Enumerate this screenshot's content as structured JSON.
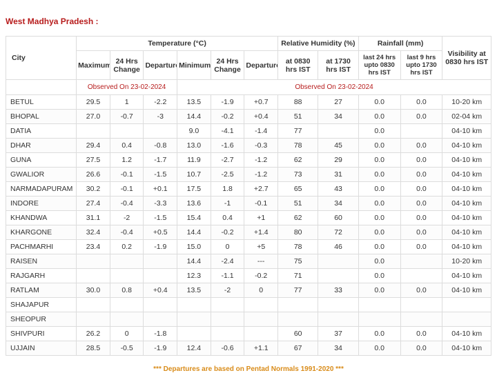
{
  "region_title": "West Madhya Pradesh :",
  "headers": {
    "city": "City",
    "temperature": "Temperature (°C)",
    "relative_humidity": "Relative Humidity (%)",
    "rainfall": "Rainfall (mm)",
    "visibility": "Visibility at 0830 hrs IST",
    "maximum": "Maximum",
    "change_24": "24 Hrs Change",
    "departure": "Departure",
    "minimum": "Minimum",
    "rh_0830": "at 0830 hrs IST",
    "rh_1730": "at 1730 hrs IST",
    "rain_24": "last 24 hrs upto 0830 hrs IST",
    "rain_9": "last 9 hrs upto 1730 hrs IST",
    "observed_left": "Observed On 23-02-2024",
    "observed_right": "Observed On 23-02-2024"
  },
  "rows": [
    {
      "city": "BETUL",
      "max": "29.5",
      "max_chg": "1",
      "max_dep": "-2.2",
      "min": "13.5",
      "min_chg": "-1.9",
      "min_dep": "+0.7",
      "rh0830": "88",
      "rh1730": "27",
      "rain24": "0.0",
      "rain9": "0.0",
      "vis": "10-20 km"
    },
    {
      "city": "BHOPAL",
      "max": "27.0",
      "max_chg": "-0.7",
      "max_dep": "-3",
      "min": "14.4",
      "min_chg": "-0.2",
      "min_dep": "+0.4",
      "rh0830": "51",
      "rh1730": "34",
      "rain24": "0.0",
      "rain9": "0.0",
      "vis": "02-04 km"
    },
    {
      "city": "DATIA",
      "max": "",
      "max_chg": "",
      "max_dep": "",
      "min": "9.0",
      "min_chg": "-4.1",
      "min_dep": "-1.4",
      "rh0830": "77",
      "rh1730": "",
      "rain24": "0.0",
      "rain9": "",
      "vis": "04-10 km"
    },
    {
      "city": "DHAR",
      "max": "29.4",
      "max_chg": "0.4",
      "max_dep": "-0.8",
      "min": "13.0",
      "min_chg": "-1.6",
      "min_dep": "-0.3",
      "rh0830": "78",
      "rh1730": "45",
      "rain24": "0.0",
      "rain9": "0.0",
      "vis": "04-10 km"
    },
    {
      "city": "GUNA",
      "max": "27.5",
      "max_chg": "1.2",
      "max_dep": "-1.7",
      "min": "11.9",
      "min_chg": "-2.7",
      "min_dep": "-1.2",
      "rh0830": "62",
      "rh1730": "29",
      "rain24": "0.0",
      "rain9": "0.0",
      "vis": "04-10 km"
    },
    {
      "city": "GWALIOR",
      "max": "26.6",
      "max_chg": "-0.1",
      "max_dep": "-1.5",
      "min": "10.7",
      "min_chg": "-2.5",
      "min_dep": "-1.2",
      "rh0830": "73",
      "rh1730": "31",
      "rain24": "0.0",
      "rain9": "0.0",
      "vis": "04-10 km"
    },
    {
      "city": "NARMADAPURAM",
      "max": "30.2",
      "max_chg": "-0.1",
      "max_dep": "+0.1",
      "min": "17.5",
      "min_chg": "1.8",
      "min_dep": "+2.7",
      "rh0830": "65",
      "rh1730": "43",
      "rain24": "0.0",
      "rain9": "0.0",
      "vis": "04-10 km"
    },
    {
      "city": "INDORE",
      "max": "27.4",
      "max_chg": "-0.4",
      "max_dep": "-3.3",
      "min": "13.6",
      "min_chg": "-1",
      "min_dep": "-0.1",
      "rh0830": "51",
      "rh1730": "34",
      "rain24": "0.0",
      "rain9": "0.0",
      "vis": "04-10 km"
    },
    {
      "city": "KHANDWA",
      "max": "31.1",
      "max_chg": "-2",
      "max_dep": "-1.5",
      "min": "15.4",
      "min_chg": "0.4",
      "min_dep": "+1",
      "rh0830": "62",
      "rh1730": "60",
      "rain24": "0.0",
      "rain9": "0.0",
      "vis": "04-10 km"
    },
    {
      "city": "KHARGONE",
      "max": "32.4",
      "max_chg": "-0.4",
      "max_dep": "+0.5",
      "min": "14.4",
      "min_chg": "-0.2",
      "min_dep": "+1.4",
      "rh0830": "80",
      "rh1730": "72",
      "rain24": "0.0",
      "rain9": "0.0",
      "vis": "04-10 km"
    },
    {
      "city": "PACHMARHI",
      "max": "23.4",
      "max_chg": "0.2",
      "max_dep": "-1.9",
      "min": "15.0",
      "min_chg": "0",
      "min_dep": "+5",
      "rh0830": "78",
      "rh1730": "46",
      "rain24": "0.0",
      "rain9": "0.0",
      "vis": "04-10 km"
    },
    {
      "city": "RAISEN",
      "max": "",
      "max_chg": "",
      "max_dep": "",
      "min": "14.4",
      "min_chg": "-2.4",
      "min_dep": "---",
      "rh0830": "75",
      "rh1730": "",
      "rain24": "0.0",
      "rain9": "",
      "vis": "10-20 km"
    },
    {
      "city": "RAJGARH",
      "max": "",
      "max_chg": "",
      "max_dep": "",
      "min": "12.3",
      "min_chg": "-1.1",
      "min_dep": "-0.2",
      "rh0830": "71",
      "rh1730": "",
      "rain24": "0.0",
      "rain9": "",
      "vis": "04-10 km"
    },
    {
      "city": "RATLAM",
      "max": "30.0",
      "max_chg": "0.8",
      "max_dep": "+0.4",
      "min": "13.5",
      "min_chg": "-2",
      "min_dep": "0",
      "rh0830": "77",
      "rh1730": "33",
      "rain24": "0.0",
      "rain9": "0.0",
      "vis": "04-10 km"
    },
    {
      "city": "SHAJAPUR",
      "max": "",
      "max_chg": "",
      "max_dep": "",
      "min": "",
      "min_chg": "",
      "min_dep": "",
      "rh0830": "",
      "rh1730": "",
      "rain24": "",
      "rain9": "",
      "vis": ""
    },
    {
      "city": "SHEOPUR",
      "max": "",
      "max_chg": "",
      "max_dep": "",
      "min": "",
      "min_chg": "",
      "min_dep": "",
      "rh0830": "",
      "rh1730": "",
      "rain24": "",
      "rain9": "",
      "vis": ""
    },
    {
      "city": "SHIVPURI",
      "max": "26.2",
      "max_chg": "0",
      "max_dep": "-1.8",
      "min": "",
      "min_chg": "",
      "min_dep": "",
      "rh0830": "60",
      "rh1730": "37",
      "rain24": "0.0",
      "rain9": "0.0",
      "vis": "04-10 km"
    },
    {
      "city": "UJJAIN",
      "max": "28.5",
      "max_chg": "-0.5",
      "max_dep": "-1.9",
      "min": "12.4",
      "min_chg": "-0.6",
      "min_dep": "+1.1",
      "rh0830": "67",
      "rh1730": "34",
      "rain24": "0.0",
      "rain9": "0.0",
      "vis": "04-10 km"
    }
  ],
  "footer_note": "*** Departures are based on Pentad Normals 1991-2020 ***",
  "colors": {
    "header_border": "#dcdcdc",
    "accent_red": "#b71c1c",
    "footer_orange": "#d98c1a"
  }
}
